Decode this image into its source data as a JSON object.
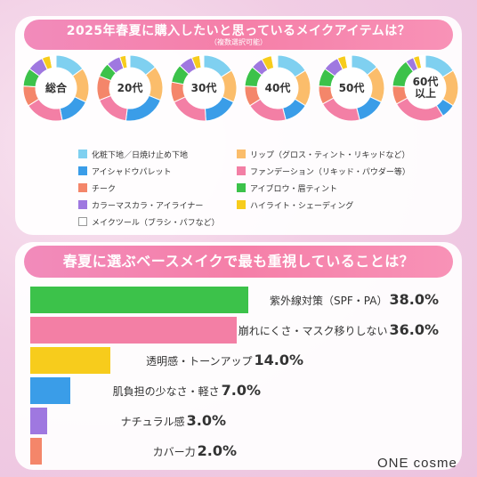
{
  "survey1": {
    "title": "2025年春夏に購入したいと思っているメイクアイテムは？",
    "note": "（複数選択可能）"
  },
  "survey2": {
    "title": "春夏に選ぶベースメイクで最も重視していることは？"
  },
  "colors": {
    "化粧下地／日焼け止め下地": "#7fd0f0",
    "リップ（グロス・ティント・リキッドなど）": "#fbbd6b",
    "アイシャドウパレット": "#3a9de8",
    "ファンデーション（リキッド・パウダー等）": "#f37fa5",
    "チーク": "#f4866a",
    "アイブロウ・眉ティント": "#3cc24a",
    "カラーマスカラ・アイライナー": "#9f78e0",
    "ハイライト・シェーディング": "#f7cc1c",
    "メイクツール（ブラシ・パフなど）": "#ffffff"
  },
  "chart_data": [
    {
      "type": "pie",
      "title": "2025年春夏に購入したいと思っているメイクアイテムは？",
      "subtitle": "（複数選択可能）",
      "legend_position": "bottom",
      "categories": [
        "化粧下地／日焼け止め下地",
        "リップ（グロス・ティント・リキッドなど）",
        "アイシャドウパレット",
        "ファンデーション（リキッド・パウダー等）",
        "チーク",
        "アイブロウ・眉ティント",
        "カラーマスカラ・アイライナー",
        "ハイライト・シェーディング",
        "メイクツール（ブラシ・パフなど）"
      ],
      "series": [
        {
          "name": "総合",
          "values": [
            15,
            17,
            15,
            19,
            10,
            9,
            8,
            4,
            3
          ]
        },
        {
          "name": "20代",
          "values": [
            14,
            17,
            21,
            17,
            12,
            7,
            7,
            3,
            2
          ]
        },
        {
          "name": "30代",
          "values": [
            16,
            16,
            17,
            19,
            10,
            9,
            7,
            4,
            2
          ]
        },
        {
          "name": "40代",
          "values": [
            16,
            18,
            12,
            20,
            10,
            10,
            6,
            5,
            3
          ]
        },
        {
          "name": "50代",
          "values": [
            14,
            18,
            14,
            21,
            9,
            9,
            8,
            4,
            3
          ]
        },
        {
          "name": "60代\n以上",
          "values": [
            16,
            18,
            7,
            26,
            9,
            14,
            4,
            3,
            3
          ]
        }
      ]
    },
    {
      "type": "bar",
      "orientation": "horizontal",
      "title": "春夏に選ぶベースメイクで最も重視していることは？",
      "unit": "%",
      "categories": [
        "紫外線対策（SPF・PA）",
        "崩れにくさ・マスク移りしない",
        "透明感・トーンアップ",
        "肌負担の少なさ・軽さ",
        "ナチュラル感",
        "カバー力"
      ],
      "values": [
        38.0,
        36.0,
        14.0,
        7.0,
        3.0,
        2.0
      ],
      "value_labels": [
        "38.0%",
        "36.0%",
        "14.0%",
        "7.0%",
        "3.0%",
        "2.0%"
      ],
      "colors": [
        "#3cc24a",
        "#f37fa5",
        "#f7cc1c",
        "#3a9de8",
        "#9f78e0",
        "#f4866a"
      ],
      "xlim": [
        0,
        100
      ]
    }
  ],
  "brand": "ONE cosme"
}
